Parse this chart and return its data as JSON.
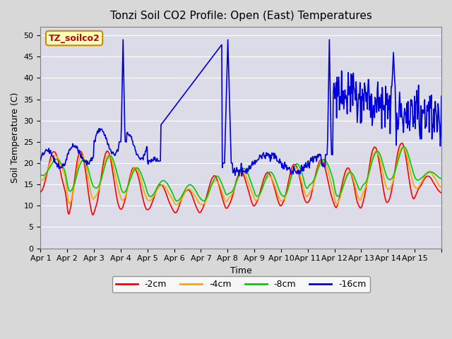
{
  "title": "Tonzi Soil CO2 Profile: Open (East) Temperatures",
  "ylabel": "Soil Temperature (C)",
  "xlabel": "Time",
  "annotation": "TZ_soilco2",
  "ylim": [
    0,
    52
  ],
  "yticks": [
    0,
    5,
    10,
    15,
    20,
    25,
    30,
    35,
    40,
    45,
    50
  ],
  "legend_labels": [
    "-2cm",
    "-4cm",
    "-8cm",
    "-16cm"
  ],
  "legend_colors": [
    "#ff0000",
    "#ffa500",
    "#00cc00",
    "#0000ff"
  ],
  "bg_color": "#e8e8e8",
  "plot_bg_color": "#e0e0e8",
  "xtick_labels": [
    "Apr 1",
    "Apr 2",
    "Apr 3",
    "Apr 4",
    "Apr 5",
    "Apr 6",
    "Apr 7",
    "Apr 8",
    "Apr 9",
    "Apr 10",
    "Apr 11",
    "Apr 12",
    "Apr 13",
    "Apr 14",
    "Apr 15"
  ],
  "n_days": 15,
  "pts_per_day": 48
}
